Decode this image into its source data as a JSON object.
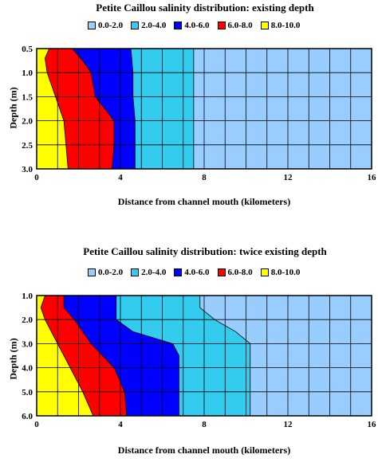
{
  "legend": {
    "entries": [
      {
        "label": "0.0-2.0",
        "color": "#99ccff"
      },
      {
        "label": "2.0-4.0",
        "color": "#33ccee"
      },
      {
        "label": "4.0-6.0",
        "color": "#0000ff"
      },
      {
        "label": "6.0-8.0",
        "color": "#ff0000"
      },
      {
        "label": "8.0-10.0",
        "color": "#ffff00"
      }
    ]
  },
  "chart_data": [
    {
      "type": "area",
      "title": "Petite Caillou salinity distribution:  existing depth",
      "xlabel": "Distance from channel mouth (kilometers)",
      "ylabel": "Depth (m)",
      "xlim": [
        0,
        16
      ],
      "ylim": [
        3.0,
        0.5
      ],
      "xticks": [
        "0",
        "4",
        "8",
        "12",
        "16"
      ],
      "yticks": [
        "0.5",
        "1.0",
        "1.5",
        "2.0",
        "2.5",
        "3.0"
      ],
      "grid": true,
      "legend_position": "top",
      "series": [
        {
          "name": "8.0-10.0",
          "boundary": {
            "depth": [
              0.5,
              0.7,
              1.0,
              1.5,
              2.0,
              2.5,
              3.0
            ],
            "x": [
              0.6,
              0.4,
              0.5,
              0.9,
              1.3,
              1.4,
              1.5
            ]
          }
        },
        {
          "name": "6.0-8.0",
          "boundary": {
            "depth": [
              0.5,
              0.75,
              1.0,
              1.5,
              2.0,
              2.5,
              3.0
            ],
            "x": [
              1.7,
              2.2,
              2.6,
              2.8,
              3.7,
              3.7,
              3.6
            ]
          }
        },
        {
          "name": "4.0-6.0",
          "boundary": {
            "depth": [
              0.5,
              1.0,
              1.5,
              2.0,
              2.5,
              3.0
            ],
            "x": [
              4.5,
              4.6,
              4.6,
              4.7,
              4.7,
              4.7
            ]
          }
        },
        {
          "name": "2.0-4.0",
          "boundary": {
            "depth": [
              0.5,
              1.0,
              1.5,
              2.0,
              2.5,
              3.0
            ],
            "x": [
              7.5,
              7.5,
              7.5,
              7.5,
              7.5,
              7.5
            ]
          }
        },
        {
          "name": "0.0-2.0",
          "boundary": {
            "depth": [
              0.5,
              3.0
            ],
            "x": [
              16,
              16
            ]
          }
        }
      ]
    },
    {
      "type": "area",
      "title": "Petite Caillou salinity distribution:  twice existing depth",
      "xlabel": "Distance from channel mouth (kilometers)",
      "ylabel": "Depth (m)",
      "xlim": [
        0,
        16
      ],
      "ylim": [
        6.0,
        1.0
      ],
      "xticks": [
        "0",
        "4",
        "8",
        "12",
        "16"
      ],
      "yticks": [
        "1.0",
        "2.0",
        "3.0",
        "4.0",
        "5.0",
        "6.0"
      ],
      "grid": true,
      "legend_position": "top",
      "series": [
        {
          "name": "8.0-10.0",
          "boundary": {
            "depth": [
              1.0,
              1.5,
              2.0,
              3.0,
              4.0,
              5.0,
              6.0
            ],
            "x": [
              0.4,
              0.2,
              0.4,
              1.0,
              1.6,
              2.2,
              2.7
            ]
          }
        },
        {
          "name": "6.0-8.0",
          "boundary": {
            "depth": [
              1.0,
              1.5,
              2.0,
              3.0,
              4.0,
              5.0,
              6.0
            ],
            "x": [
              1.3,
              1.3,
              1.8,
              2.6,
              3.7,
              4.2,
              4.3
            ]
          }
        },
        {
          "name": "4.0-6.0",
          "boundary": {
            "depth": [
              1.0,
              2.0,
              2.5,
              3.0,
              3.5,
              4.0,
              5.0,
              6.0
            ],
            "x": [
              3.8,
              3.8,
              4.6,
              6.5,
              6.8,
              6.8,
              6.8,
              6.8
            ]
          }
        },
        {
          "name": "2.0-4.0",
          "boundary": {
            "depth": [
              1.0,
              1.5,
              2.0,
              2.5,
              3.0,
              4.0,
              5.0,
              6.0
            ],
            "x": [
              7.8,
              7.8,
              8.5,
              9.5,
              10.2,
              10.2,
              10.2,
              10.2
            ]
          }
        },
        {
          "name": "0.0-2.0",
          "boundary": {
            "depth": [
              1.0,
              6.0
            ],
            "x": [
              16,
              16
            ]
          }
        }
      ]
    }
  ]
}
